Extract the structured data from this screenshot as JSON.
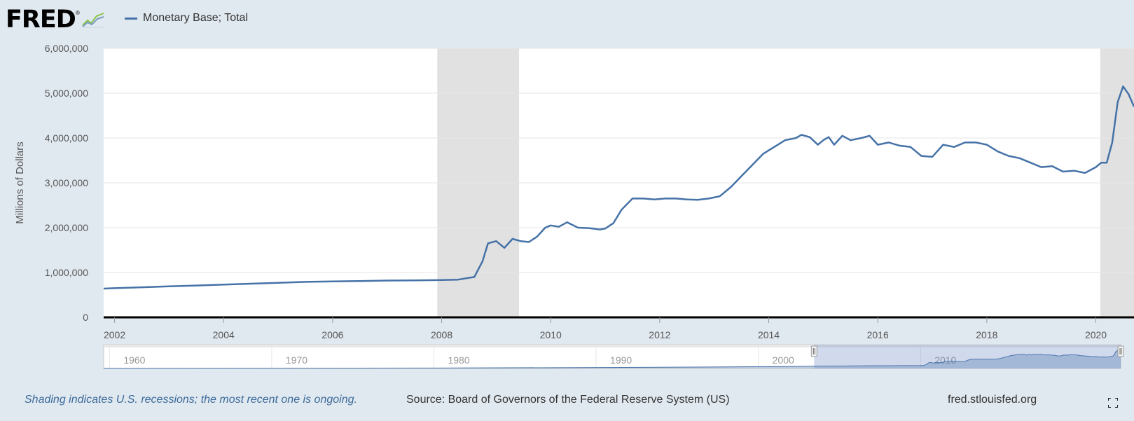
{
  "header": {
    "logo_text": "FRED",
    "series_label": "Monetary Base; Total",
    "series_color": "#4572a7"
  },
  "footer": {
    "recession_note": "Shading indicates U.S. recessions; the most recent one is ongoing.",
    "source": "Source: Board of Governors of the Federal Reserve System (US)",
    "site": "fred.stlouisfed.org",
    "fullscreen_icon": "fullscreen-icon"
  },
  "chart_data": {
    "type": "line",
    "title": "",
    "xlabel": "",
    "ylabel": "Millions of Dollars",
    "xlim": [
      2001.8,
      2020.7
    ],
    "ylim": [
      0,
      6000000
    ],
    "y_ticks": [
      "0",
      "1,000,000",
      "2,000,000",
      "3,000,000",
      "4,000,000",
      "5,000,000",
      "6,000,000"
    ],
    "y_tick_values": [
      0,
      1000000,
      2000000,
      3000000,
      4000000,
      5000000,
      6000000
    ],
    "x_ticks": [
      "2002",
      "2004",
      "2006",
      "2008",
      "2010",
      "2012",
      "2014",
      "2016",
      "2018",
      "2020"
    ],
    "x_tick_values": [
      2002,
      2004,
      2006,
      2008,
      2010,
      2012,
      2014,
      2016,
      2018,
      2020
    ],
    "grid": true,
    "recessions": [
      [
        2007.92,
        2009.42
      ],
      [
        2020.08,
        2020.7
      ]
    ],
    "series": [
      {
        "name": "Monetary Base; Total",
        "color": "#4572a7",
        "x": [
          2001.8,
          2002.0,
          2002.5,
          2003.0,
          2003.5,
          2004.0,
          2004.5,
          2005.0,
          2005.5,
          2006.0,
          2006.5,
          2007.0,
          2007.5,
          2007.9,
          2008.3,
          2008.6,
          2008.75,
          2008.85,
          2009.0,
          2009.15,
          2009.3,
          2009.45,
          2009.6,
          2009.75,
          2009.9,
          2010.0,
          2010.15,
          2010.3,
          2010.5,
          2010.7,
          2010.9,
          2011.0,
          2011.15,
          2011.3,
          2011.5,
          2011.7,
          2011.9,
          2012.1,
          2012.3,
          2012.5,
          2012.7,
          2012.9,
          2013.1,
          2013.3,
          2013.5,
          2013.7,
          2013.9,
          2014.1,
          2014.3,
          2014.5,
          2014.6,
          2014.75,
          2014.9,
          2015.0,
          2015.1,
          2015.2,
          2015.35,
          2015.5,
          2015.7,
          2015.85,
          2016.0,
          2016.2,
          2016.4,
          2016.6,
          2016.8,
          2017.0,
          2017.2,
          2017.4,
          2017.6,
          2017.8,
          2018.0,
          2018.2,
          2018.4,
          2018.6,
          2018.8,
          2019.0,
          2019.2,
          2019.4,
          2019.6,
          2019.8,
          2020.0,
          2020.1,
          2020.2,
          2020.3,
          2020.4,
          2020.5,
          2020.6,
          2020.7
        ],
        "y": [
          640000,
          650000,
          670000,
          690000,
          710000,
          730000,
          750000,
          770000,
          790000,
          800000,
          810000,
          820000,
          825000,
          830000,
          840000,
          900000,
          1250000,
          1650000,
          1700000,
          1550000,
          1750000,
          1700000,
          1680000,
          1800000,
          2000000,
          2050000,
          2020000,
          2120000,
          2000000,
          1990000,
          1960000,
          1980000,
          2100000,
          2400000,
          2650000,
          2650000,
          2630000,
          2650000,
          2650000,
          2630000,
          2620000,
          2650000,
          2700000,
          2900000,
          3150000,
          3400000,
          3650000,
          3800000,
          3950000,
          4000000,
          4070000,
          4020000,
          3850000,
          3950000,
          4020000,
          3850000,
          4050000,
          3950000,
          4000000,
          4050000,
          3850000,
          3900000,
          3830000,
          3800000,
          3600000,
          3580000,
          3850000,
          3800000,
          3900000,
          3900000,
          3850000,
          3700000,
          3600000,
          3550000,
          3450000,
          3350000,
          3370000,
          3250000,
          3270000,
          3220000,
          3350000,
          3450000,
          3450000,
          3900000,
          4800000,
          5150000,
          4980000,
          4700000
        ]
      }
    ],
    "navigator": {
      "ticks": [
        "1960",
        "1970",
        "1980",
        "1990",
        "2000",
        "2010"
      ],
      "tick_values": [
        1960,
        1970,
        1980,
        1990,
        2000,
        2010
      ],
      "range": [
        1958,
        2020.7
      ],
      "selected": [
        2001.8,
        2020.7
      ]
    }
  }
}
